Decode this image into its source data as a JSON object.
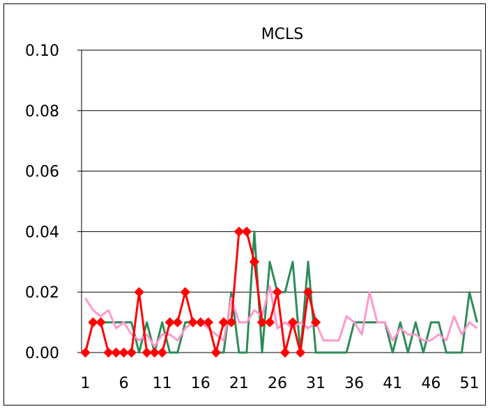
{
  "chart_data": {
    "type": "line",
    "title": "MCLS",
    "xlabel": "",
    "ylabel": "",
    "ylim": [
      0,
      0.1
    ],
    "y_ticks": [
      "0.00",
      "0.02",
      "0.04",
      "0.06",
      "0.08",
      "0.10"
    ],
    "x_ticks": [
      "1",
      "6",
      "11",
      "16",
      "21",
      "26",
      "31",
      "36",
      "41",
      "46",
      "51"
    ],
    "gridlines": "horizontal",
    "legend": "none",
    "series": [
      {
        "color": "#2e8b57",
        "marker": "none",
        "x": [
          1,
          2,
          3,
          4,
          5,
          6,
          7,
          8,
          9,
          10,
          11,
          12,
          13,
          14,
          15,
          16,
          17,
          18,
          19,
          20,
          21,
          22,
          23,
          24,
          25,
          26,
          27,
          28,
          29,
          30,
          31,
          32,
          33,
          34,
          35,
          36,
          37,
          38,
          39,
          40,
          41,
          42,
          43,
          44,
          45,
          46,
          47,
          48,
          49,
          50,
          51,
          52
        ],
        "values": [
          0.0,
          0.01,
          0.01,
          0.01,
          0.01,
          0.01,
          0.01,
          0.0,
          0.01,
          0.0,
          0.01,
          0.0,
          0.0,
          0.01,
          0.01,
          0.01,
          0.01,
          0.0,
          0.0,
          0.02,
          0.0,
          0.0,
          0.04,
          0.0,
          0.03,
          0.02,
          0.02,
          0.03,
          0.0,
          0.03,
          0.0,
          0.0,
          0.0,
          0.0,
          0.0,
          0.01,
          0.01,
          0.01,
          0.01,
          0.01,
          0.0,
          0.01,
          0.0,
          0.01,
          0.0,
          0.01,
          0.01,
          0.0,
          0.0,
          0.0,
          0.02,
          0.01
        ]
      },
      {
        "color": "#ff99cc",
        "marker": "none",
        "x": [
          1,
          2,
          3,
          4,
          5,
          6,
          7,
          8,
          9,
          10,
          11,
          12,
          13,
          14,
          15,
          16,
          17,
          18,
          19,
          20,
          21,
          22,
          23,
          24,
          25,
          26,
          27,
          28,
          29,
          30,
          31,
          32,
          33,
          34,
          35,
          36,
          37,
          38,
          39,
          40,
          41,
          42,
          43,
          44,
          45,
          46,
          47,
          48,
          49,
          50,
          51,
          52
        ],
        "values": [
          0.018,
          0.014,
          0.012,
          0.014,
          0.008,
          0.01,
          0.006,
          0.004,
          0.006,
          0.002,
          0.006,
          0.006,
          0.004,
          0.008,
          0.01,
          0.01,
          0.008,
          0.006,
          0.004,
          0.018,
          0.01,
          0.01,
          0.014,
          0.012,
          0.022,
          0.008,
          0.01,
          0.008,
          0.01,
          0.008,
          0.01,
          0.004,
          0.004,
          0.004,
          0.012,
          0.01,
          0.006,
          0.02,
          0.01,
          0.01,
          0.004,
          0.008,
          0.006,
          0.006,
          0.004,
          0.004,
          0.006,
          0.004,
          0.012,
          0.006,
          0.01,
          0.008
        ]
      },
      {
        "color": "#ff0000",
        "marker": "diamond",
        "x": [
          1,
          2,
          3,
          4,
          5,
          6,
          7,
          8,
          9,
          10,
          11,
          12,
          13,
          14,
          15,
          16,
          17,
          18,
          19,
          20,
          21,
          22,
          23,
          24,
          25,
          26,
          27,
          28,
          29,
          30,
          31
        ],
        "values": [
          0.0,
          0.01,
          0.01,
          0.0,
          0.0,
          0.0,
          0.0,
          0.02,
          0.0,
          0.0,
          0.0,
          0.01,
          0.01,
          0.02,
          0.01,
          0.01,
          0.01,
          0.0,
          0.01,
          0.01,
          0.04,
          0.04,
          0.03,
          0.01,
          0.01,
          0.02,
          0.0,
          0.01,
          0.0,
          0.02,
          0.01
        ]
      }
    ]
  }
}
